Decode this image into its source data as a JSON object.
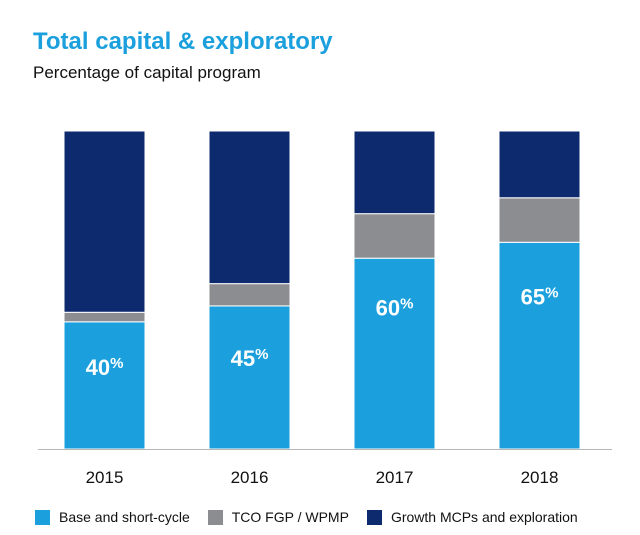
{
  "colors": {
    "title": "#1ba0dd",
    "base": "#1ba0dd",
    "tco": "#8c8d91",
    "growth": "#0d2a6e",
    "axis": "#b7b7b7"
  },
  "chart_data": {
    "type": "bar",
    "stacked": true,
    "title": "Total capital & exploratory",
    "subtitle": "Percentage of capital program",
    "xlabel": "",
    "ylabel": "",
    "ylim": [
      0,
      100
    ],
    "grid": false,
    "legend_position": "bottom",
    "categories": [
      "2015",
      "2016",
      "2017",
      "2018"
    ],
    "series": [
      {
        "name": "Base and short-cycle",
        "values": [
          40,
          45,
          60,
          65
        ],
        "labels": [
          "40%",
          "45%",
          "60%",
          "65%"
        ]
      },
      {
        "name": "TCO FGP / WPMP",
        "values": [
          3,
          7,
          14,
          14
        ]
      },
      {
        "name": "Growth MCPs and exploration",
        "values": [
          57,
          48,
          26,
          21
        ]
      }
    ]
  }
}
